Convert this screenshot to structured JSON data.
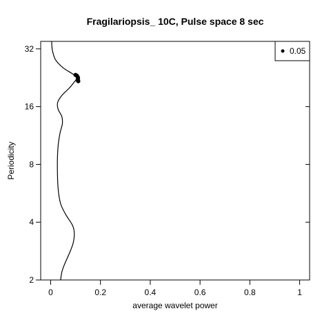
{
  "chart_data": {
    "type": "line",
    "title": "Fragilariopsis_ 10C, Pulse space 8 sec",
    "xlabel": "average wavelet power",
    "ylabel": "Periodicity",
    "xlim": [
      -0.04,
      1.04
    ],
    "ylim": [
      2,
      35
    ],
    "y_scale": "log2",
    "x_ticks": [
      0,
      0.2,
      0.4,
      0.6,
      0.8,
      1
    ],
    "x_tick_labels": [
      "0",
      "0.2",
      "0.4",
      "0.6",
      "0.8",
      "1"
    ],
    "y_ticks": [
      2,
      4,
      8,
      16,
      32
    ],
    "y_tick_labels": [
      "2",
      "4",
      "8",
      "16",
      "32"
    ],
    "grid": false,
    "legend": {
      "position": "top-right",
      "entries": [
        {
          "marker": "dot",
          "label": "0.05"
        }
      ]
    },
    "series": [
      {
        "style": "line",
        "points": [
          {
            "x": 0.04,
            "y": 2.0
          },
          {
            "x": 0.045,
            "y": 2.2
          },
          {
            "x": 0.055,
            "y": 2.4
          },
          {
            "x": 0.075,
            "y": 2.75
          },
          {
            "x": 0.09,
            "y": 3.1
          },
          {
            "x": 0.095,
            "y": 3.5
          },
          {
            "x": 0.088,
            "y": 3.85
          },
          {
            "x": 0.06,
            "y": 4.4
          },
          {
            "x": 0.04,
            "y": 5.0
          },
          {
            "x": 0.03,
            "y": 6.0
          },
          {
            "x": 0.027,
            "y": 8.0
          },
          {
            "x": 0.03,
            "y": 10.0
          },
          {
            "x": 0.038,
            "y": 11.7
          },
          {
            "x": 0.047,
            "y": 13.0
          },
          {
            "x": 0.045,
            "y": 14.2
          },
          {
            "x": 0.03,
            "y": 15.5
          },
          {
            "x": 0.028,
            "y": 16.8
          },
          {
            "x": 0.045,
            "y": 18.3
          },
          {
            "x": 0.075,
            "y": 20.0
          },
          {
            "x": 0.095,
            "y": 21.5
          },
          {
            "x": 0.105,
            "y": 22.5
          },
          {
            "x": 0.09,
            "y": 23.6
          },
          {
            "x": 0.05,
            "y": 25.5
          },
          {
            "x": 0.02,
            "y": 28.0
          },
          {
            "x": 0.008,
            "y": 31.0
          },
          {
            "x": 0.005,
            "y": 33.0
          },
          {
            "x": 0.004,
            "y": 35.0
          }
        ]
      },
      {
        "style": "dot",
        "name": "0.05",
        "points": [
          {
            "x": 0.108,
            "y": 22.0
          },
          {
            "x": 0.11,
            "y": 22.4
          },
          {
            "x": 0.109,
            "y": 22.8
          },
          {
            "x": 0.105,
            "y": 23.2
          },
          {
            "x": 0.1,
            "y": 23.4
          },
          {
            "x": 0.111,
            "y": 21.7
          }
        ]
      }
    ]
  }
}
